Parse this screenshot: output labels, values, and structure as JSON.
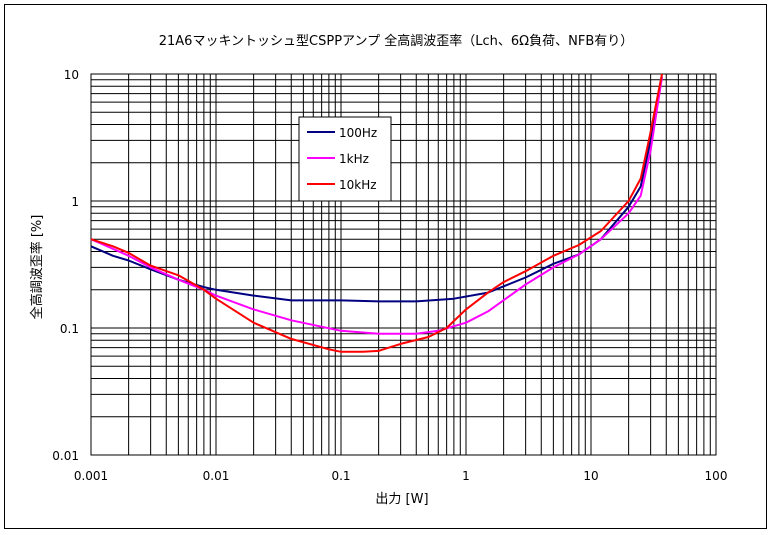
{
  "chart_data": {
    "type": "line",
    "title": "21A6マッキントッシュ型CSPPアンプ 全高調波歪率（Lch、6Ω負荷、NFB有り）",
    "xlabel": "出力 [W]",
    "ylabel": "全高調波歪率 [%]",
    "x_scale": "log",
    "y_scale": "log",
    "xlim": [
      0.001,
      100
    ],
    "ylim": [
      0.01,
      10
    ],
    "grid": true,
    "legend_position": "upper-left",
    "x_ticks": [
      {
        "value": 0.001,
        "label": "0.001"
      },
      {
        "value": 0.01,
        "label": "0.01"
      },
      {
        "value": 0.1,
        "label": "0.1"
      },
      {
        "value": 1,
        "label": "1"
      },
      {
        "value": 10,
        "label": "10"
      },
      {
        "value": 100,
        "label": "100"
      }
    ],
    "y_ticks": [
      {
        "value": 0.01,
        "label": "0.01"
      },
      {
        "value": 0.1,
        "label": "0.1"
      },
      {
        "value": 1,
        "label": "1"
      },
      {
        "value": 10,
        "label": "10"
      }
    ],
    "series": [
      {
        "name": "100Hz",
        "color": "#000080",
        "x": [
          0.001,
          0.0015,
          0.002,
          0.003,
          0.005,
          0.008,
          0.01,
          0.02,
          0.04,
          0.1,
          0.2,
          0.4,
          0.8,
          1.5,
          3,
          5,
          8,
          12,
          20,
          25,
          30,
          37
        ],
        "y": [
          0.44,
          0.37,
          0.34,
          0.29,
          0.24,
          0.21,
          0.2,
          0.18,
          0.165,
          0.165,
          0.162,
          0.162,
          0.17,
          0.19,
          0.25,
          0.32,
          0.38,
          0.5,
          0.9,
          1.3,
          3.0,
          9.5
        ]
      },
      {
        "name": "1kHz",
        "color": "#ff00ff",
        "x": [
          0.001,
          0.0015,
          0.002,
          0.003,
          0.005,
          0.008,
          0.01,
          0.02,
          0.04,
          0.1,
          0.2,
          0.4,
          0.6,
          1,
          1.5,
          3,
          5,
          8,
          12,
          20,
          25,
          30,
          37
        ],
        "y": [
          0.5,
          0.42,
          0.37,
          0.3,
          0.24,
          0.2,
          0.18,
          0.14,
          0.115,
          0.095,
          0.09,
          0.09,
          0.095,
          0.11,
          0.135,
          0.22,
          0.3,
          0.38,
          0.5,
          0.8,
          1.1,
          2.5,
          9.5
        ]
      },
      {
        "name": "10kHz",
        "color": "#ff0000",
        "x": [
          0.001,
          0.0015,
          0.002,
          0.003,
          0.005,
          0.008,
          0.01,
          0.02,
          0.04,
          0.08,
          0.1,
          0.15,
          0.2,
          0.3,
          0.5,
          0.7,
          1,
          1.5,
          2,
          3,
          5,
          8,
          12,
          20,
          25,
          30,
          37
        ],
        "y": [
          0.5,
          0.44,
          0.39,
          0.31,
          0.26,
          0.2,
          0.17,
          0.11,
          0.082,
          0.068,
          0.065,
          0.065,
          0.066,
          0.075,
          0.085,
          0.1,
          0.14,
          0.19,
          0.23,
          0.28,
          0.37,
          0.45,
          0.58,
          1.0,
          1.5,
          3.5,
          10
        ]
      }
    ]
  }
}
